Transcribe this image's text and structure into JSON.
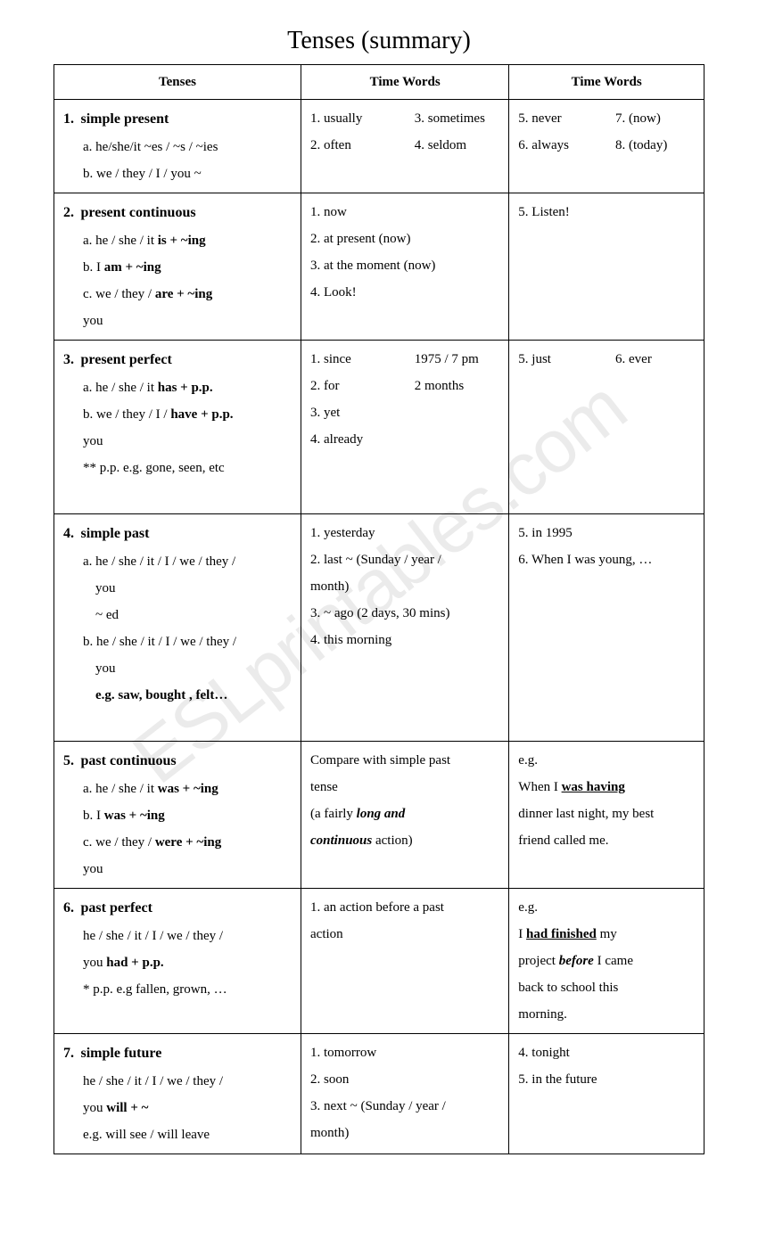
{
  "title": "Tenses (summary)",
  "watermark": "ESLprintables.com",
  "headers": {
    "c1": "Tenses",
    "c2": "Time Words",
    "c3": "Time Words"
  },
  "rows": [
    {
      "num": "1.",
      "name": "simple present",
      "forms": [
        "a. he/she/it ~es / ~s / ~ies",
        "b. we / they / I / you ~"
      ],
      "tw1_pairs": [
        {
          "a": "1. usually",
          "b": "3. sometimes"
        },
        {
          "a": "2. often",
          "b": "4. seldom"
        }
      ],
      "tw2_pairs": [
        {
          "a": "5. never",
          "b": "7. (now)"
        },
        {
          "a": "6. always",
          "b": "8. (today)"
        }
      ]
    },
    {
      "num": "2.",
      "name": "present continuous",
      "forms_html": [
        {
          "pre": "a.  he / she / it   ",
          "bold": "is + ~ing"
        },
        {
          "pre": "b.  I                    ",
          "bold": "am + ~ing"
        },
        {
          "pre": "c.  we / they /     ",
          "bold": "are + ~ing"
        },
        {
          "pre": "     you",
          "bold": ""
        }
      ],
      "tw1_list": [
        "1.  now",
        "2.  at present (now)",
        "3.  at the moment (now)",
        "4.  Look!"
      ],
      "tw2_list": [
        "5. Listen!"
      ]
    },
    {
      "num": "3.",
      "name": "present perfect",
      "forms_html": [
        {
          "pre": "a. he / she / it     ",
          "bold": "has + p.p."
        },
        {
          "pre": "b. we / they / I /  ",
          "bold": "have + p.p."
        },
        {
          "pre": "   you",
          "bold": ""
        },
        {
          "pre": "** p.p. e.g. gone, seen, etc",
          "bold": ""
        }
      ],
      "tw1_pairs": [
        {
          "a": "1.  since",
          "b": "1975 / 7 pm"
        },
        {
          "a": "2.  for",
          "b": "2 months"
        },
        {
          "a": "3.  yet",
          "b": ""
        },
        {
          "a": "4.  already",
          "b": ""
        }
      ],
      "tw2_pairs": [
        {
          "a": "5. just",
          "b": "6. ever"
        }
      ]
    },
    {
      "num": "4.",
      "name": "simple past",
      "forms_sp": {
        "a1": "a.  he / she / it / I / we / they /",
        "a2": "you",
        "a3": "~ ed",
        "b1": "b.  he / she / it / I / we / they /",
        "b2": "you",
        "b3": "e.g. saw, bought , felt…"
      },
      "tw1_list": [
        "1.  yesterday",
        "2.  last ~ (Sunday / year /",
        "     month)",
        "3.  ~ ago (2 days, 30 mins)",
        "4.  this morning"
      ],
      "tw2_list": [
        "5.  in 1995",
        "6.  When I was young, …"
      ]
    },
    {
      "num": "5.",
      "name": "past continuous",
      "forms_html": [
        {
          "pre": "a.    he / she / it   ",
          "bold": "was + ~ing"
        },
        {
          "pre": "b.    I                   ",
          "bold": "was + ~ing"
        },
        {
          "pre": "c.    we / they /    ",
          "bold": "were + ~ing"
        },
        {
          "pre": "       you",
          "bold": ""
        }
      ],
      "tw1_pc": {
        "l1": "Compare with simple past",
        "l2": "tense",
        "l3a": "(a fairly ",
        "l3b": "long and",
        "l4a": "continuous",
        "l4b": " action)"
      },
      "tw2_pc": {
        "l1": "e.g.",
        "l2a": "When I ",
        "l2b": "was having",
        "l3": "dinner last night, my best",
        "l4": "friend called me."
      }
    },
    {
      "num": "6.",
      "name": "past perfect",
      "forms_pp": {
        "l1": "he / she / it / I / we / they /",
        "l2a": "you        ",
        "l2b": "had + p.p.",
        "l3": "* p.p. e.g   fallen, grown, …"
      },
      "tw1_list": [
        "1. an action before a past",
        "    action"
      ],
      "tw2_pp": {
        "l1": "e.g.",
        "l2a": "I ",
        "l2b": "had finished",
        "l2c": " my",
        "l3a": "project ",
        "l3b": "before",
        "l3c": " I came",
        "l4": "back to school this",
        "l5": "morning."
      }
    },
    {
      "num": "7.",
      "name": "simple future",
      "forms_sf": {
        "l1": "he / she / it / I / we / they /",
        "l2a": "you         ",
        "l2b": "will + ~",
        "l3": "e.g.         will see / will leave"
      },
      "tw1_list": [
        "1. tomorrow",
        "2. soon",
        "3. next ~ (Sunday / year /",
        "    month)"
      ],
      "tw2_list": [
        "4. tonight",
        "5. in the future"
      ]
    }
  ]
}
